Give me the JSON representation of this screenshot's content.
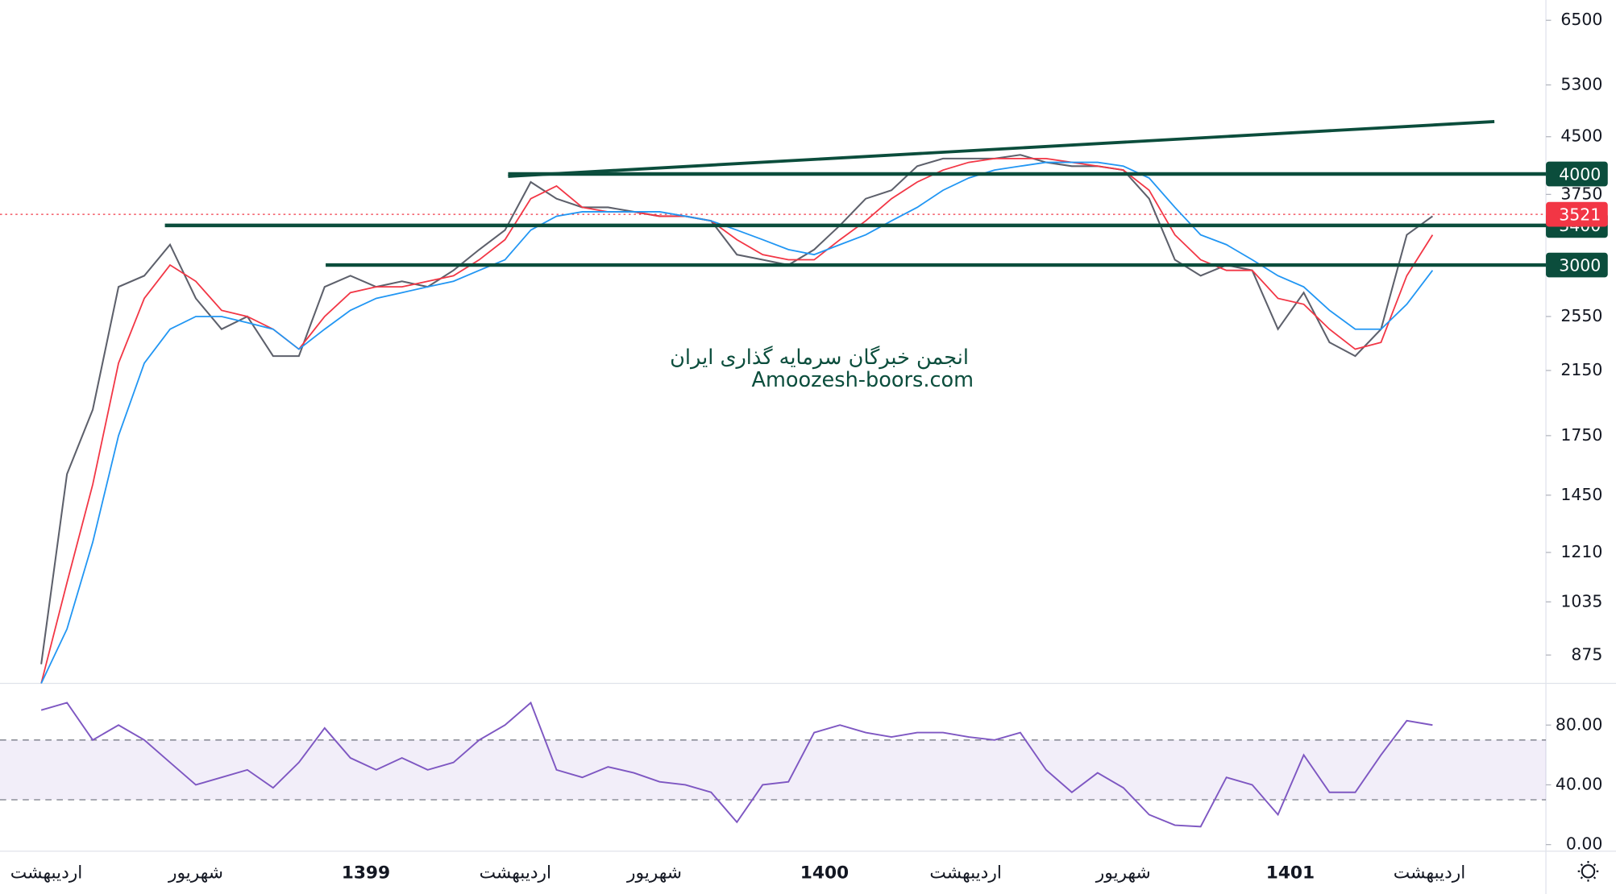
{
  "chart_data": [
    {
      "type": "line",
      "log_scale": true,
      "x": [
        40,
        65,
        90,
        115,
        140,
        165,
        190,
        215,
        240,
        265,
        290,
        315,
        340,
        365,
        390,
        415,
        440,
        465,
        490,
        515,
        540,
        565,
        590,
        615,
        640,
        665,
        690,
        715,
        740,
        765,
        790,
        815,
        840,
        865,
        890,
        915,
        940,
        965,
        990,
        1015,
        1040,
        1065,
        1090,
        1115,
        1140,
        1165,
        1190,
        1215,
        1240,
        1265,
        1290,
        1315,
        1340,
        1365,
        1390
      ],
      "series": [
        {
          "color": "#5d606b",
          "values": [
            850,
            1550,
            1900,
            2800,
            2900,
            3200,
            2700,
            2450,
            2550,
            2250,
            2250,
            2800,
            2900,
            2800,
            2850,
            2800,
            2950,
            3150,
            3350,
            3900,
            3700,
            3600,
            3600,
            3550,
            3500,
            3500,
            3450,
            3100,
            3050,
            3000,
            3150,
            3400,
            3700,
            3800,
            4100,
            4200,
            4200,
            4200,
            4250,
            4150,
            4100,
            4100,
            4050,
            3700,
            3050,
            2900,
            3000,
            2950,
            2450,
            2750,
            2350,
            2250,
            2450,
            3300,
            3500
          ]
        },
        {
          "color": "#f23645",
          "values": [
            800,
            1100,
            1500,
            2200,
            2700,
            3000,
            2850,
            2600,
            2550,
            2450,
            2300,
            2550,
            2750,
            2800,
            2800,
            2850,
            2900,
            3050,
            3250,
            3700,
            3850,
            3600,
            3550,
            3550,
            3500,
            3500,
            3450,
            3250,
            3100,
            3050,
            3050,
            3250,
            3450,
            3700,
            3900,
            4050,
            4150,
            4200,
            4200,
            4200,
            4150,
            4100,
            4050,
            3800,
            3300,
            3050,
            2950,
            2950,
            2700,
            2650,
            2450,
            2300,
            2350,
            2900,
            3300
          ]
        },
        {
          "color": "#2196f3",
          "values": [
            800,
            950,
            1250,
            1750,
            2200,
            2450,
            2550,
            2550,
            2500,
            2450,
            2300,
            2450,
            2600,
            2700,
            2750,
            2800,
            2850,
            2950,
            3050,
            3350,
            3500,
            3550,
            3550,
            3550,
            3550,
            3500,
            3450,
            3350,
            3250,
            3150,
            3100,
            3200,
            3300,
            3450,
            3600,
            3800,
            3950,
            4050,
            4100,
            4150,
            4150,
            4150,
            4100,
            3950,
            3600,
            3300,
            3200,
            3050,
            2900,
            2800,
            2600,
            2450,
            2450,
            2650,
            2950
          ]
        }
      ],
      "xlim": [
        0,
        1500
      ],
      "ylim": [
        804,
        6930
      ],
      "yticks": [
        6500,
        5300,
        4500,
        3750,
        2550,
        2150,
        1750,
        1450,
        1210,
        1035,
        875
      ],
      "levels": [
        4000,
        3400,
        3000
      ],
      "level_x": [
        493,
        160,
        316
      ],
      "level_color": "#0b4d3c",
      "trendline": {
        "x": [
          493,
          1450
        ],
        "values": [
          3970,
          4720
        ]
      },
      "last_price": 3521,
      "last_price_color": "#f23645",
      "watermark": [
        "انجمن خبرگان سرمایه گذاری ایران",
        "Amoozesh-boors.com"
      ]
    },
    {
      "type": "line",
      "x": [
        40,
        65,
        90,
        115,
        140,
        165,
        190,
        215,
        240,
        265,
        290,
        315,
        340,
        365,
        390,
        415,
        440,
        465,
        490,
        515,
        540,
        565,
        590,
        615,
        640,
        665,
        690,
        715,
        740,
        765,
        790,
        815,
        840,
        865,
        890,
        915,
        940,
        965,
        990,
        1015,
        1040,
        1065,
        1090,
        1115,
        1140,
        1165,
        1190,
        1215,
        1240,
        1265,
        1290,
        1315,
        1340,
        1365,
        1390
      ],
      "values": [
        90,
        95,
        70,
        80,
        70,
        55,
        40,
        45,
        50,
        38,
        55,
        78,
        58,
        50,
        58,
        50,
        55,
        70,
        80,
        95,
        50,
        45,
        52,
        48,
        42,
        40,
        35,
        15,
        40,
        42,
        75,
        80,
        75,
        72,
        75,
        75,
        72,
        70,
        75,
        50,
        35,
        48,
        38,
        20,
        13,
        12,
        45,
        40,
        20,
        60,
        35,
        35,
        60,
        83,
        80
      ],
      "color": "#7e57c2",
      "xlim": [
        0,
        1500
      ],
      "ylim": [
        -4.1,
        106.9
      ],
      "yticks": [
        {
          "value": 80,
          "label": "80.00"
        },
        {
          "value": 40,
          "label": "40.00"
        },
        {
          "value": 0,
          "label": "0.00"
        }
      ],
      "bands": [
        30,
        70
      ],
      "xticks": [
        {
          "value": 45,
          "label": "اردیبهشت"
        },
        {
          "value": 190,
          "label": "شهریور"
        },
        {
          "value": 355,
          "label": "1399"
        },
        {
          "value": 500,
          "label": "اردیبهشت"
        },
        {
          "value": 635,
          "label": "شهریور"
        },
        {
          "value": 800,
          "label": "1400"
        },
        {
          "value": 937,
          "label": "اردیبهشت"
        },
        {
          "value": 1090,
          "label": "شهریور"
        },
        {
          "value": 1252,
          "label": "1401"
        },
        {
          "value": 1387,
          "label": "اردیبهشت"
        }
      ]
    }
  ]
}
